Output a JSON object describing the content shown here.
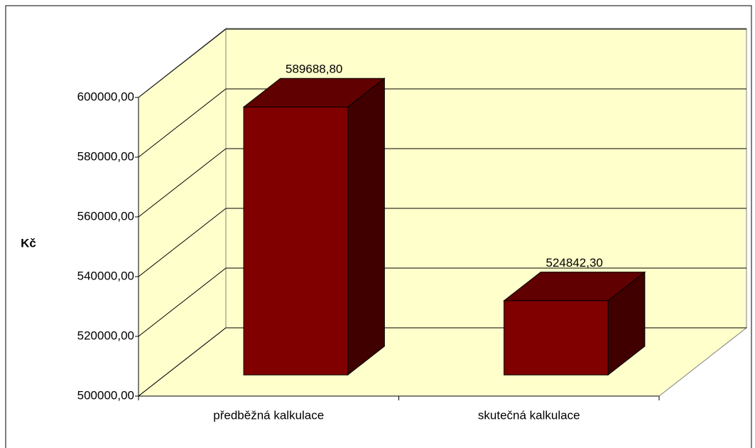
{
  "chart_data": {
    "type": "bar3d",
    "categories": [
      "předběžná kalkulace",
      "skutečná kalkulace"
    ],
    "values": [
      589688.8,
      524842.3
    ],
    "value_labels": [
      "589688,80",
      "524842,30"
    ],
    "color": "#800000",
    "ylabel": "Kč",
    "ylim": [
      500000,
      600000
    ],
    "yticks": [
      {
        "value": 500000,
        "label": "500000,00"
      },
      {
        "value": 520000,
        "label": "520000,00"
      },
      {
        "value": 540000,
        "label": "540000,00"
      },
      {
        "value": 560000,
        "label": "560000,00"
      },
      {
        "value": 580000,
        "label": "580000,00"
      },
      {
        "value": 600000,
        "label": "600000,00"
      }
    ],
    "grid": true
  }
}
